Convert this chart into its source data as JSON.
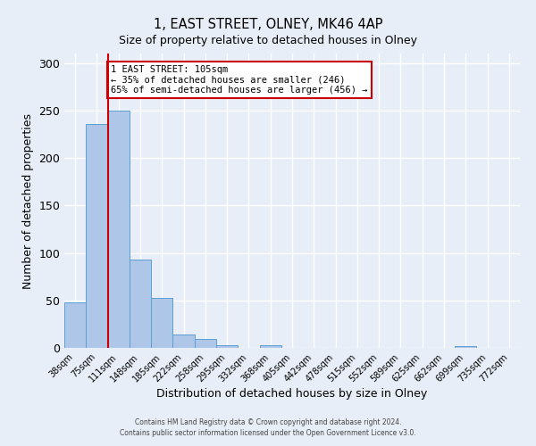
{
  "title": "1, EAST STREET, OLNEY, MK46 4AP",
  "subtitle": "Size of property relative to detached houses in Olney",
  "xlabel": "Distribution of detached houses by size in Olney",
  "ylabel": "Number of detached properties",
  "bin_labels": [
    "38sqm",
    "75sqm",
    "111sqm",
    "148sqm",
    "185sqm",
    "222sqm",
    "258sqm",
    "295sqm",
    "332sqm",
    "368sqm",
    "405sqm",
    "442sqm",
    "478sqm",
    "515sqm",
    "552sqm",
    "589sqm",
    "625sqm",
    "662sqm",
    "699sqm",
    "735sqm",
    "772sqm"
  ],
  "bar_heights": [
    48,
    236,
    250,
    93,
    53,
    14,
    9,
    3,
    0,
    3,
    0,
    0,
    0,
    0,
    0,
    0,
    0,
    0,
    2,
    0,
    0
  ],
  "bar_color": "#aec6e8",
  "bar_edge_color": "#5a9fd4",
  "vline_x_index": 2,
  "vline_color": "#cc0000",
  "ylim": [
    0,
    310
  ],
  "yticks": [
    0,
    50,
    100,
    150,
    200,
    250,
    300
  ],
  "annotation_title": "1 EAST STREET: 105sqm",
  "annotation_line1": "← 35% of detached houses are smaller (246)",
  "annotation_line2": "65% of semi-detached houses are larger (456) →",
  "annotation_box_color": "#cc0000",
  "footer_line1": "Contains HM Land Registry data © Crown copyright and database right 2024.",
  "footer_line2": "Contains public sector information licensed under the Open Government Licence v3.0.",
  "background_color": "#e8eef7",
  "grid_color": "#ffffff"
}
